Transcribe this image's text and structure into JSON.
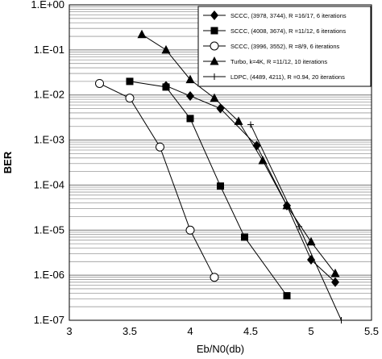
{
  "chart_data": {
    "type": "line",
    "xlabel": "Eb/N0(db)",
    "ylabel": "BER",
    "x_scale": "linear",
    "y_scale": "log",
    "xlim": [
      3,
      5.5
    ],
    "ylim": [
      1e-07,
      1
    ],
    "x_ticks": [
      "3",
      "3.5",
      "4",
      "4.5",
      "5",
      "5.5"
    ],
    "y_ticks": [
      "1.E+00",
      "1.E-01",
      "1.E-02",
      "1.E-03",
      "1.E-04",
      "1.E-05",
      "1.E-06",
      "1.E-07"
    ],
    "grid": "horizontal, dense",
    "legend_position": "top-right",
    "series": [
      {
        "name": "SCCC, (3978, 3744), R =16/17, 6 iterations",
        "marker": "diamond",
        "x": [
          3.8,
          4.0,
          4.25,
          4.55,
          4.8,
          5.0,
          5.2
        ],
        "y": [
          0.016,
          0.0095,
          0.005,
          0.00075,
          3.5e-05,
          2.2e-06,
          7e-07
        ]
      },
      {
        "name": "SCCC, (4008, 3674), R =11/12, 6 iterations",
        "marker": "square",
        "x": [
          3.5,
          3.8,
          4.0,
          4.25,
          4.45,
          4.8
        ],
        "y": [
          0.02,
          0.015,
          0.003,
          9.5e-05,
          7e-06,
          3.5e-07
        ]
      },
      {
        "name": "SCCC, (3996, 3552), R =8/9, 6 iterations",
        "marker": "open-circle",
        "x": [
          3.25,
          3.5,
          3.75,
          4.0,
          4.2
        ],
        "y": [
          0.018,
          0.0085,
          0.0007,
          1e-05,
          9e-07
        ]
      },
      {
        "name": "Turbo, k=4K, R =11/12, 10 iterations",
        "marker": "triangle",
        "x": [
          3.6,
          3.8,
          4.0,
          4.2,
          4.4,
          4.6,
          4.8,
          5.0,
          5.2
        ],
        "y": [
          0.22,
          0.1,
          0.022,
          0.0085,
          0.0026,
          0.00035,
          3.5e-05,
          5.5e-06,
          1.1e-06
        ]
      },
      {
        "name": "LDPC, (4489, 4211), R =0.94, 20 iterations",
        "marker": "plus",
        "x": [
          4.5,
          4.9,
          5.25
        ],
        "y": [
          0.0022,
          1.2e-05,
          1e-07
        ]
      }
    ]
  }
}
